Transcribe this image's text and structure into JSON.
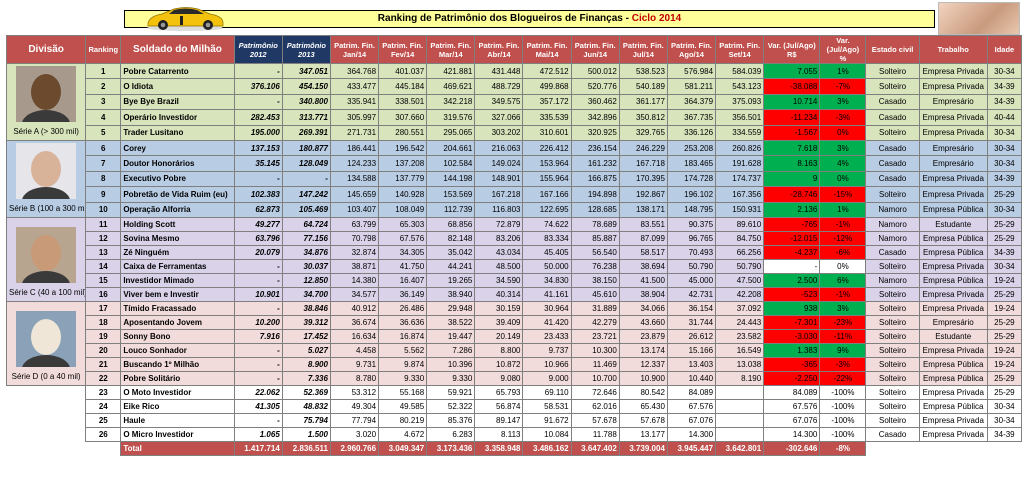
{
  "title": {
    "main": "Ranking de Patrimônio dos Blogueiros de Finanças - ",
    "highlight": "Ciclo 2014"
  },
  "headers": {
    "divisao": "Divisão",
    "ranking": "Ranking",
    "soldado": "Soldado do Milhão",
    "p2012": "Patrimônio 2012",
    "p2013": "Patrimônio 2013",
    "months": [
      "Patrim. Fin. Jan/14",
      "Patrim. Fin. Fev/14",
      "Patrim. Fin. Mar/14",
      "Patrim. Fin. Abr/14",
      "Patrim. Fin. Mai/14",
      "Patrim. Fin. Jun/14",
      "Patrim. Fin. Jul/14",
      "Patrim. Fin. Ago/14",
      "Patrim. Fin. Set/14"
    ],
    "var_rs": "Var. (Jul/Ago) R$",
    "var_pct": "Var. (Jul/Ago) %",
    "estado": "Estado civil",
    "trabalho": "Trabalho",
    "idade": "Idade"
  },
  "divisions": [
    {
      "label": "Série A (> 300 mil)"
    },
    {
      "label": "Série B (100 a 300 mil)"
    },
    {
      "label": "Série C (40 a 100 mil)"
    },
    {
      "label": "Série D (0 a 40 mil)"
    }
  ],
  "rows": [
    {
      "rank": "1",
      "name": "Pobre Catarrento",
      "p2012": "-",
      "p2013": "347.051",
      "m": [
        "364.768",
        "401.037",
        "421.881",
        "431.448",
        "472.512",
        "500.012",
        "538.523",
        "576.984",
        "584.039"
      ],
      "var": "7.055",
      "pct": "1%",
      "sign": "pos",
      "estado": "Solteiro",
      "trabalho": "Empresa Privada",
      "idade": "30-34"
    },
    {
      "rank": "2",
      "name": "O Idiota",
      "p2012": "376.106",
      "p2013": "454.150",
      "m": [
        "433.477",
        "445.184",
        "469.621",
        "488.729",
        "499.868",
        "520.776",
        "540.189",
        "581.211",
        "543.123"
      ],
      "var": "-38.088",
      "pct": "-7%",
      "sign": "neg",
      "estado": "Solteiro",
      "trabalho": "Empresa Privada",
      "idade": "34-39"
    },
    {
      "rank": "3",
      "name": "Bye Bye Brazil",
      "p2012": "-",
      "p2013": "340.800",
      "m": [
        "335.941",
        "338.501",
        "342.218",
        "349.575",
        "357.172",
        "360.462",
        "361.177",
        "364.379",
        "375.093"
      ],
      "var": "10.714",
      "pct": "3%",
      "sign": "pos",
      "estado": "Casado",
      "trabalho": "Empresário",
      "idade": "34-39"
    },
    {
      "rank": "4",
      "name": "Operário Investidor",
      "p2012": "282.453",
      "p2013": "313.771",
      "m": [
        "305.997",
        "307.660",
        "319.576",
        "327.066",
        "335.539",
        "342.896",
        "350.812",
        "367.735",
        "356.501"
      ],
      "var": "-11.234",
      "pct": "-3%",
      "sign": "neg",
      "estado": "Casado",
      "trabalho": "Empresa Privada",
      "idade": "40-44"
    },
    {
      "rank": "5",
      "name": "Trader Lusitano",
      "p2012": "195.000",
      "p2013": "269.391",
      "m": [
        "271.731",
        "280.551",
        "295.065",
        "303.202",
        "310.601",
        "320.925",
        "329.765",
        "336.126",
        "334.559"
      ],
      "var": "-1.567",
      "pct": "0%",
      "sign": "neg",
      "estado": "Solteiro",
      "trabalho": "Empresa Privada",
      "idade": "30-34"
    },
    {
      "rank": "6",
      "name": "Corey",
      "p2012": "137.153",
      "p2013": "180.877",
      "m": [
        "186.441",
        "196.542",
        "204.661",
        "216.063",
        "226.412",
        "236.154",
        "246.229",
        "253.208",
        "260.826"
      ],
      "var": "7.618",
      "pct": "3%",
      "sign": "pos",
      "estado": "Casado",
      "trabalho": "Empresário",
      "idade": "30-34"
    },
    {
      "rank": "7",
      "name": "Doutor Honorários",
      "p2012": "35.145",
      "p2013": "128.049",
      "m": [
        "124.233",
        "137.208",
        "102.584",
        "149.024",
        "153.964",
        "161.232",
        "167.718",
        "183.465",
        "191.628"
      ],
      "var": "8.163",
      "pct": "4%",
      "sign": "pos",
      "estado": "Casado",
      "trabalho": "Empresário",
      "idade": "30-34"
    },
    {
      "rank": "8",
      "name": "Executivo Pobre",
      "p2012": "-",
      "p2013": "-",
      "m": [
        "134.588",
        "137.779",
        "144.198",
        "148.901",
        "155.964",
        "166.875",
        "170.395",
        "174.728",
        "174.737"
      ],
      "var": "9",
      "pct": "0%",
      "sign": "pos",
      "estado": "Casado",
      "trabalho": "Empresa Privada",
      "idade": "34-39"
    },
    {
      "rank": "9",
      "name": "Pobretão de Vida Ruim (eu)",
      "p2012": "102.383",
      "p2013": "147.242",
      "m": [
        "145.659",
        "140.928",
        "153.569",
        "167.218",
        "167.166",
        "194.898",
        "192.867",
        "196.102",
        "167.356"
      ],
      "var": "-28.746",
      "pct": "-15%",
      "sign": "neg",
      "estado": "Solteiro",
      "trabalho": "Empresa Privada",
      "idade": "25-29"
    },
    {
      "rank": "10",
      "name": "Operação Alforria",
      "p2012": "62.873",
      "p2013": "105.469",
      "m": [
        "103.407",
        "108.049",
        "112.739",
        "116.803",
        "122.695",
        "128.685",
        "138.171",
        "148.795",
        "150.931"
      ],
      "var": "2.136",
      "pct": "1%",
      "sign": "pos",
      "estado": "Namoro",
      "trabalho": "Empresa Pública",
      "idade": "30-34"
    },
    {
      "rank": "11",
      "name": "Holding Scott",
      "p2012": "49.277",
      "p2013": "64.724",
      "m": [
        "63.799",
        "65.303",
        "68.856",
        "72.879",
        "74.622",
        "78.689",
        "83.551",
        "90.375",
        "89.610"
      ],
      "var": "-765",
      "pct": "-1%",
      "sign": "neg",
      "estado": "Namoro",
      "trabalho": "Estudante",
      "idade": "25-29"
    },
    {
      "rank": "12",
      "name": "Sovina Mesmo",
      "p2012": "63.796",
      "p2013": "77.156",
      "m": [
        "70.798",
        "67.576",
        "82.148",
        "83.206",
        "83.334",
        "85.887",
        "87.099",
        "96.765",
        "84.750"
      ],
      "var": "-12.015",
      "pct": "-12%",
      "sign": "neg",
      "estado": "Namoro",
      "trabalho": "Empresa Pública",
      "idade": "25-29"
    },
    {
      "rank": "13",
      "name": "Zé Ninguém",
      "p2012": "20.079",
      "p2013": "34.876",
      "m": [
        "32.874",
        "34.305",
        "35.042",
        "43.034",
        "45.405",
        "56.540",
        "58.517",
        "70.493",
        "66.256"
      ],
      "var": "-4.237",
      "pct": "-6%",
      "sign": "neg",
      "estado": "Casado",
      "trabalho": "Empresa Pública",
      "idade": "34-39"
    },
    {
      "rank": "14",
      "name": "Caixa de Ferramentas",
      "p2012": "-",
      "p2013": "30.037",
      "m": [
        "38.871",
        "41.750",
        "44.241",
        "48.500",
        "50.000",
        "76.238",
        "38.694",
        "50.790",
        "50.790"
      ],
      "var": "-",
      "pct": "0%",
      "sign": "none",
      "estado": "Solteiro",
      "trabalho": "Empresa Privada",
      "idade": "30-34"
    },
    {
      "rank": "15",
      "name": "Investidor Mimado",
      "p2012": "-",
      "p2013": "12.850",
      "m": [
        "14.380",
        "16.407",
        "19.265",
        "34.590",
        "34.830",
        "38.150",
        "41.500",
        "45.000",
        "47.500"
      ],
      "var": "2.500",
      "pct": "6%",
      "sign": "pos",
      "estado": "Namoro",
      "trabalho": "Empresa Pública",
      "idade": "19-24"
    },
    {
      "rank": "16",
      "name": "Viver bem e Investir",
      "p2012": "10.901",
      "p2013": "34.700",
      "m": [
        "34.577",
        "36.149",
        "38.940",
        "40.314",
        "41.161",
        "45.610",
        "38.904",
        "42.731",
        "42.208"
      ],
      "var": "-523",
      "pct": "-1%",
      "sign": "neg",
      "estado": "Solteiro",
      "trabalho": "Empresa Privada",
      "idade": "25-29"
    },
    {
      "rank": "17",
      "name": "Tímido Fracassado",
      "p2012": "-",
      "p2013": "38.846",
      "m": [
        "40.912",
        "26.486",
        "29.948",
        "30.159",
        "30.964",
        "31.889",
        "34.066",
        "36.154",
        "37.092"
      ],
      "var": "938",
      "pct": "3%",
      "sign": "pos",
      "estado": "Solteiro",
      "trabalho": "Empresa Privada",
      "idade": "19-24"
    },
    {
      "rank": "18",
      "name": "Aposentando Jovem",
      "p2012": "10.200",
      "p2013": "39.312",
      "m": [
        "36.674",
        "36.636",
        "38.522",
        "39.409",
        "41.420",
        "42.279",
        "43.660",
        "31.744",
        "24.443"
      ],
      "var": "-7.301",
      "pct": "-23%",
      "sign": "neg",
      "estado": "Solteiro",
      "trabalho": "Empresário",
      "idade": "25-29"
    },
    {
      "rank": "19",
      "name": "Sonny Bono",
      "p2012": "7.916",
      "p2013": "17.452",
      "m": [
        "16.634",
        "16.874",
        "19.447",
        "20.149",
        "23.433",
        "23.721",
        "23.879",
        "26.612",
        "23.582"
      ],
      "var": "-3.030",
      "pct": "-11%",
      "sign": "neg",
      "estado": "Solteiro",
      "trabalho": "Estudante",
      "idade": "25-29"
    },
    {
      "rank": "20",
      "name": "Louco Sonhador",
      "p2012": "-",
      "p2013": "5.027",
      "m": [
        "4.458",
        "5.562",
        "7.286",
        "8.800",
        "9.737",
        "10.300",
        "13.174",
        "15.166",
        "16.549"
      ],
      "var": "1.383",
      "pct": "9%",
      "sign": "pos",
      "estado": "Solteiro",
      "trabalho": "Empresa Privada",
      "idade": "19-24"
    },
    {
      "rank": "21",
      "name": "Buscando 1º Milhão",
      "p2012": "-",
      "p2013": "8.900",
      "m": [
        "9.731",
        "9.874",
        "10.396",
        "10.872",
        "10.966",
        "11.469",
        "12.337",
        "13.403",
        "13.038"
      ],
      "var": "-365",
      "pct": "-3%",
      "sign": "neg",
      "estado": "Solteiro",
      "trabalho": "Empresa Pública",
      "idade": "19-24"
    },
    {
      "rank": "22",
      "name": "Pobre Solitário",
      "p2012": "-",
      "p2013": "7.336",
      "m": [
        "8.780",
        "9.330",
        "9.330",
        "9.080",
        "9.000",
        "10.700",
        "10.900",
        "10.440",
        "8.190"
      ],
      "var": "-2.250",
      "pct": "-22%",
      "sign": "neg",
      "estado": "Solteiro",
      "trabalho": "Empresa Pública",
      "idade": "25-29"
    },
    {
      "rank": "23",
      "name": "O Moto Investidor",
      "p2012": "22.062",
      "p2013": "52.369",
      "m": [
        "53.312",
        "55.168",
        "59.921",
        "65.793",
        "69.110",
        "72.646",
        "80.542",
        "84.089",
        ""
      ],
      "var": "84.089",
      "pct": "-100%",
      "sign": "white",
      "estado": "Solteiro",
      "trabalho": "Empresa Privada",
      "idade": "25-29"
    },
    {
      "rank": "24",
      "name": "Eike Rico",
      "p2012": "41.305",
      "p2013": "48.832",
      "m": [
        "49.304",
        "49.585",
        "52.322",
        "56.874",
        "58.531",
        "62.016",
        "65.430",
        "67.576",
        ""
      ],
      "var": "67.576",
      "pct": "-100%",
      "sign": "white",
      "estado": "Solteiro",
      "trabalho": "Empresa Pública",
      "idade": "30-34"
    },
    {
      "rank": "25",
      "name": "Haule",
      "p2012": "-",
      "p2013": "75.794",
      "m": [
        "77.794",
        "80.219",
        "85.376",
        "89.147",
        "91.672",
        "57.678",
        "57.678",
        "67.076",
        ""
      ],
      "var": "67.076",
      "pct": "-100%",
      "sign": "white",
      "estado": "Solteiro",
      "trabalho": "Empresa Privada",
      "idade": "30-34"
    },
    {
      "rank": "26",
      "name": "O Micro Investidor",
      "p2012": "1.065",
      "p2013": "1.500",
      "m": [
        "3.020",
        "4.672",
        "6.283",
        "8.113",
        "10.084",
        "11.788",
        "13.177",
        "14.300",
        ""
      ],
      "var": "14.300",
      "pct": "-100%",
      "sign": "white",
      "estado": "Casado",
      "trabalho": "Empresa Privada",
      "idade": "34-39"
    }
  ],
  "total": {
    "label": "Total",
    "p2012": "1.417.714",
    "p2013": "2.836.511",
    "m": [
      "2.960.766",
      "3.049.347",
      "3.173.436",
      "3.358.948",
      "3.486.162",
      "3.647.402",
      "3.739.004",
      "3.945.447",
      "3.642.801"
    ],
    "var": "-302.646",
    "pct": "-8%"
  },
  "colors": {
    "header": "#c0504d",
    "seriesA": "#d8e4bc",
    "seriesB": "#b8cce4",
    "seriesC": "#d9d2e9",
    "seriesD": "#f2dcdb",
    "positive": "#00b050",
    "negative": "#ff0000"
  },
  "icons": {
    "car": "yellow-sports-car-icon",
    "photo": "woman-photo-icon"
  }
}
